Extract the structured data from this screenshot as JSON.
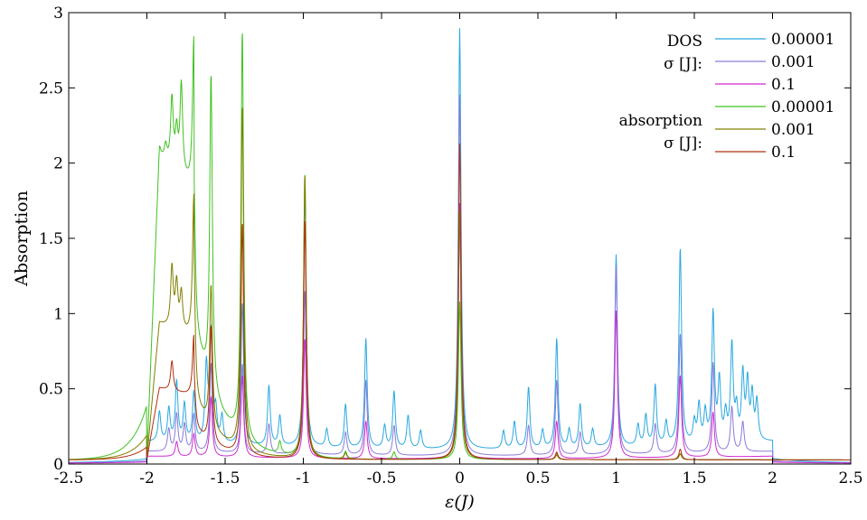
{
  "chart_data": {
    "type": "line",
    "title": "",
    "xlabel": "ε(J)",
    "ylabel": "Absorption",
    "xlim": [
      -2.5,
      2.5
    ],
    "ylim": [
      0,
      3
    ],
    "x_ticks": [
      -2.5,
      -2,
      -1.5,
      -1,
      -0.5,
      0,
      0.5,
      1,
      1.5,
      2,
      2.5
    ],
    "x_tick_labels": [
      "-2.5",
      "-2",
      "-1.5",
      "-1",
      "-0.5",
      "0",
      "0.5",
      "1",
      "1.5",
      "2",
      "2.5"
    ],
    "y_ticks": [
      0,
      0.5,
      1,
      1.5,
      2,
      2.5,
      3
    ],
    "y_tick_labels": [
      "0",
      "0.5",
      "1",
      "1.5",
      "2",
      "2.5",
      "3"
    ],
    "grid": false,
    "legend": {
      "placement": "top-right",
      "group_labels": [
        {
          "lines": [
            "DOS",
            "σ [J]:"
          ]
        },
        {
          "lines": [
            "absorption",
            "σ [J]:"
          ]
        }
      ]
    },
    "series": [
      {
        "name": "0.00001",
        "group": "DOS",
        "color": "#2aa8e0",
        "background": {
          "type": "dos",
          "level": 0.09
        },
        "peaks": [
          [
            -1.92,
            0.2
          ],
          [
            -1.86,
            0.22
          ],
          [
            -1.81,
            0.4
          ],
          [
            -1.76,
            0.25
          ],
          [
            -1.7,
            0.33
          ],
          [
            -1.62,
            0.5
          ],
          [
            -1.59,
            0.72
          ],
          [
            -1.56,
            0.2
          ],
          [
            -1.52,
            0.18
          ],
          [
            -1.39,
            0.95
          ],
          [
            -1.22,
            0.4
          ],
          [
            -1.15,
            0.2
          ],
          [
            -0.99,
            1.7
          ],
          [
            -0.85,
            0.12
          ],
          [
            -0.73,
            0.29
          ],
          [
            -0.6,
            0.73
          ],
          [
            -0.48,
            0.15
          ],
          [
            -0.42,
            0.38
          ],
          [
            -0.33,
            0.22
          ],
          [
            -0.25,
            0.12
          ],
          [
            0.0,
            2.8
          ],
          [
            0.28,
            0.12
          ],
          [
            0.35,
            0.18
          ],
          [
            0.44,
            0.41
          ],
          [
            0.53,
            0.12
          ],
          [
            0.62,
            0.73
          ],
          [
            0.7,
            0.12
          ],
          [
            0.77,
            0.29
          ],
          [
            0.85,
            0.12
          ],
          [
            1.0,
            1.28
          ],
          [
            1.14,
            0.14
          ],
          [
            1.19,
            0.2
          ],
          [
            1.25,
            0.4
          ],
          [
            1.32,
            0.15
          ],
          [
            1.41,
            1.31
          ],
          [
            1.5,
            0.14
          ],
          [
            1.53,
            0.25
          ],
          [
            1.57,
            0.2
          ],
          [
            1.62,
            0.86
          ],
          [
            1.66,
            0.4
          ],
          [
            1.7,
            0.18
          ],
          [
            1.74,
            0.64
          ],
          [
            1.77,
            0.2
          ],
          [
            1.81,
            0.44
          ],
          [
            1.84,
            0.38
          ],
          [
            1.87,
            0.3
          ],
          [
            1.9,
            0.26
          ]
        ]
      },
      {
        "name": "0.001",
        "group": "DOS",
        "color": "#8a7ad8",
        "background": {
          "type": "dos",
          "level": 0.05
        },
        "peaks": [
          [
            -1.86,
            0.15
          ],
          [
            -1.81,
            0.25
          ],
          [
            -1.76,
            0.18
          ],
          [
            -1.7,
            0.25
          ],
          [
            -1.59,
            0.6
          ],
          [
            -1.39,
            0.6
          ],
          [
            -1.22,
            0.2
          ],
          [
            -0.99,
            1.1
          ],
          [
            -0.73,
            0.15
          ],
          [
            -0.6,
            0.5
          ],
          [
            -0.42,
            0.2
          ],
          [
            0.0,
            2.4
          ],
          [
            0.44,
            0.2
          ],
          [
            0.62,
            0.5
          ],
          [
            0.77,
            0.15
          ],
          [
            1.0,
            1.26
          ],
          [
            1.25,
            0.2
          ],
          [
            1.41,
            0.8
          ],
          [
            1.62,
            0.6
          ],
          [
            1.74,
            0.3
          ],
          [
            1.81,
            0.2
          ]
        ]
      },
      {
        "name": "0.1",
        "group": "DOS",
        "color": "#d02ad0",
        "background": {
          "type": "dos",
          "level": 0.03
        },
        "peaks": [
          [
            -1.81,
            0.1
          ],
          [
            -1.7,
            0.15
          ],
          [
            -1.59,
            0.4
          ],
          [
            -1.39,
            0.55
          ],
          [
            -0.99,
            0.8
          ],
          [
            -0.6,
            0.25
          ],
          [
            0.0,
            1.7
          ],
          [
            0.62,
            0.25
          ],
          [
            1.0,
            0.98
          ],
          [
            1.41,
            0.55
          ],
          [
            1.62,
            0.3
          ]
        ]
      },
      {
        "name": "0.00001",
        "group": "absorption",
        "color": "#40c020",
        "background": {
          "type": "absorption",
          "level": 1.78
        },
        "peaks": [
          [
            -1.92,
            0.05
          ],
          [
            -1.88,
            0.1
          ],
          [
            -1.84,
            0.45
          ],
          [
            -1.81,
            0.25
          ],
          [
            -1.78,
            0.6
          ],
          [
            -1.7,
            1.0
          ],
          [
            -1.59,
            2.1
          ],
          [
            -1.39,
            2.72
          ],
          [
            -1.15,
            0.08
          ],
          [
            -0.99,
            1.9
          ],
          [
            -0.73,
            0.05
          ],
          [
            -0.42,
            0.05
          ],
          [
            0.0,
            1.05
          ],
          [
            0.62,
            0.04
          ],
          [
            1.41,
            0.04
          ]
        ]
      },
      {
        "name": "0.001",
        "group": "absorption",
        "color": "#808000",
        "background": {
          "type": "absorption",
          "level": 0.8
        },
        "peaks": [
          [
            -1.84,
            0.4
          ],
          [
            -1.81,
            0.3
          ],
          [
            -1.78,
            0.25
          ],
          [
            -1.7,
            0.95
          ],
          [
            -1.59,
            0.95
          ],
          [
            -1.39,
            2.3
          ],
          [
            -0.99,
            1.9
          ],
          [
            -0.73,
            0.04
          ],
          [
            0.0,
            1.65
          ],
          [
            0.62,
            0.03
          ],
          [
            1.41,
            0.04
          ]
        ]
      },
      {
        "name": "0.1",
        "group": "absorption",
        "color": "#b03010",
        "background": {
          "type": "absorption",
          "level": 0.42
        },
        "peaks": [
          [
            -1.84,
            0.2
          ],
          [
            -1.7,
            0.4
          ],
          [
            -1.59,
            0.78
          ],
          [
            -1.39,
            1.55
          ],
          [
            -0.99,
            1.6
          ],
          [
            0.0,
            2.1
          ],
          [
            0.62,
            0.05
          ],
          [
            1.41,
            0.07
          ]
        ]
      }
    ]
  }
}
